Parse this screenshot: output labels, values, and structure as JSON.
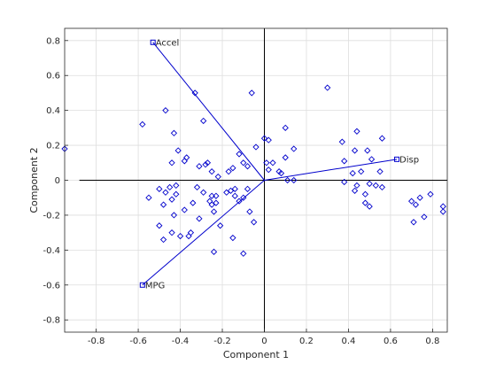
{
  "chart_data": {
    "type": "scatter",
    "subtype": "biplot",
    "xlabel": "Component 1",
    "ylabel": "Component 2",
    "xlim": [
      -0.95,
      0.87
    ],
    "ylim": [
      -0.87,
      0.87
    ],
    "xticks": [
      -0.8,
      -0.6,
      -0.4,
      -0.2,
      0,
      0.2,
      0.4,
      0.6,
      0.8
    ],
    "yticks": [
      -0.8,
      -0.6,
      -0.4,
      -0.2,
      0,
      0.2,
      0.4,
      0.6,
      0.8
    ],
    "xtick_labels": [
      "-0.8",
      "-0.6",
      "-0.4",
      "-0.2",
      "0",
      "0.2",
      "0.4",
      "0.6",
      "0.8"
    ],
    "ytick_labels": [
      "-0.8",
      "-0.6",
      "-0.4",
      "-0.2",
      "0",
      "0.2",
      "0.4",
      "0.6",
      "0.8"
    ],
    "grid": true,
    "zero_lines": {
      "x_range": [
        -0.88,
        0.87
      ]
    },
    "colors": {
      "vector": "#0000cc",
      "point": "#0000cc",
      "axis": "#000000",
      "grid": "#dedede"
    },
    "vectors": [
      {
        "name": "Accel",
        "x": -0.53,
        "y": 0.79
      },
      {
        "name": "Disp",
        "x": 0.63,
        "y": 0.12
      },
      {
        "name": "MPG",
        "x": -0.58,
        "y": -0.6
      }
    ],
    "points": [
      [
        -0.95,
        0.18
      ],
      [
        -0.58,
        0.32
      ],
      [
        -0.47,
        0.4
      ],
      [
        -0.33,
        0.5
      ],
      [
        -0.06,
        0.5
      ],
      [
        0.3,
        0.53
      ],
      [
        -0.43,
        0.27
      ],
      [
        -0.29,
        0.34
      ],
      [
        0.1,
        0.3
      ],
      [
        0.37,
        0.22
      ],
      [
        0.44,
        0.28
      ],
      [
        0.56,
        0.24
      ],
      [
        -0.41,
        0.17
      ],
      [
        -0.37,
        0.13
      ],
      [
        -0.38,
        0.11
      ],
      [
        -0.44,
        0.1
      ],
      [
        -0.31,
        0.08
      ],
      [
        -0.28,
        0.09
      ],
      [
        -0.27,
        0.1
      ],
      [
        -0.25,
        0.05
      ],
      [
        -0.22,
        0.02
      ],
      [
        -0.17,
        0.05
      ],
      [
        -0.15,
        0.07
      ],
      [
        -0.12,
        0.15
      ],
      [
        -0.1,
        0.1
      ],
      [
        -0.08,
        0.08
      ],
      [
        -0.04,
        0.19
      ],
      [
        0.0,
        0.24
      ],
      [
        0.02,
        0.23
      ],
      [
        0.01,
        0.1
      ],
      [
        0.02,
        0.06
      ],
      [
        0.04,
        0.1
      ],
      [
        0.07,
        0.05
      ],
      [
        0.08,
        0.04
      ],
      [
        0.1,
        0.13
      ],
      [
        0.14,
        0.18
      ],
      [
        0.38,
        0.11
      ],
      [
        0.43,
        0.17
      ],
      [
        0.49,
        0.17
      ],
      [
        0.51,
        0.12
      ],
      [
        0.42,
        0.04
      ],
      [
        0.46,
        0.05
      ],
      [
        0.55,
        0.05
      ],
      [
        0.53,
        -0.03
      ],
      [
        0.5,
        -0.02
      ],
      [
        0.44,
        -0.03
      ],
      [
        0.38,
        -0.01
      ],
      [
        0.43,
        -0.06
      ],
      [
        0.48,
        -0.08
      ],
      [
        0.56,
        -0.04
      ],
      [
        0.7,
        -0.12
      ],
      [
        0.74,
        -0.1
      ],
      [
        0.79,
        -0.08
      ],
      [
        0.72,
        -0.14
      ],
      [
        0.85,
        -0.15
      ],
      [
        0.85,
        -0.18
      ],
      [
        0.76,
        -0.21
      ],
      [
        0.71,
        -0.24
      ],
      [
        0.48,
        -0.13
      ],
      [
        0.5,
        -0.15
      ],
      [
        0.11,
        0.0
      ],
      [
        0.14,
        0.0
      ],
      [
        -0.5,
        -0.05
      ],
      [
        -0.45,
        -0.04
      ],
      [
        -0.47,
        -0.07
      ],
      [
        -0.42,
        -0.08
      ],
      [
        -0.42,
        -0.03
      ],
      [
        -0.44,
        -0.11
      ],
      [
        -0.55,
        -0.1
      ],
      [
        -0.48,
        -0.14
      ],
      [
        -0.43,
        -0.2
      ],
      [
        -0.38,
        -0.17
      ],
      [
        -0.34,
        -0.13
      ],
      [
        -0.32,
        -0.04
      ],
      [
        -0.29,
        -0.07
      ],
      [
        -0.26,
        -0.12
      ],
      [
        -0.25,
        -0.09
      ],
      [
        -0.23,
        -0.09
      ],
      [
        -0.23,
        -0.13
      ],
      [
        -0.18,
        -0.07
      ],
      [
        -0.16,
        -0.06
      ],
      [
        -0.14,
        -0.05
      ],
      [
        -0.14,
        -0.09
      ],
      [
        -0.12,
        -0.12
      ],
      [
        -0.1,
        -0.1
      ],
      [
        -0.08,
        -0.05
      ],
      [
        -0.07,
        -0.18
      ],
      [
        -0.05,
        -0.24
      ],
      [
        -0.5,
        -0.26
      ],
      [
        -0.44,
        -0.3
      ],
      [
        -0.4,
        -0.32
      ],
      [
        -0.35,
        -0.3
      ],
      [
        -0.36,
        -0.32
      ],
      [
        -0.31,
        -0.22
      ],
      [
        -0.25,
        -0.14
      ],
      [
        -0.21,
        -0.26
      ],
      [
        -0.24,
        -0.18
      ],
      [
        -0.15,
        -0.33
      ],
      [
        -0.24,
        -0.41
      ],
      [
        -0.1,
        -0.42
      ],
      [
        -0.48,
        -0.34
      ]
    ]
  }
}
